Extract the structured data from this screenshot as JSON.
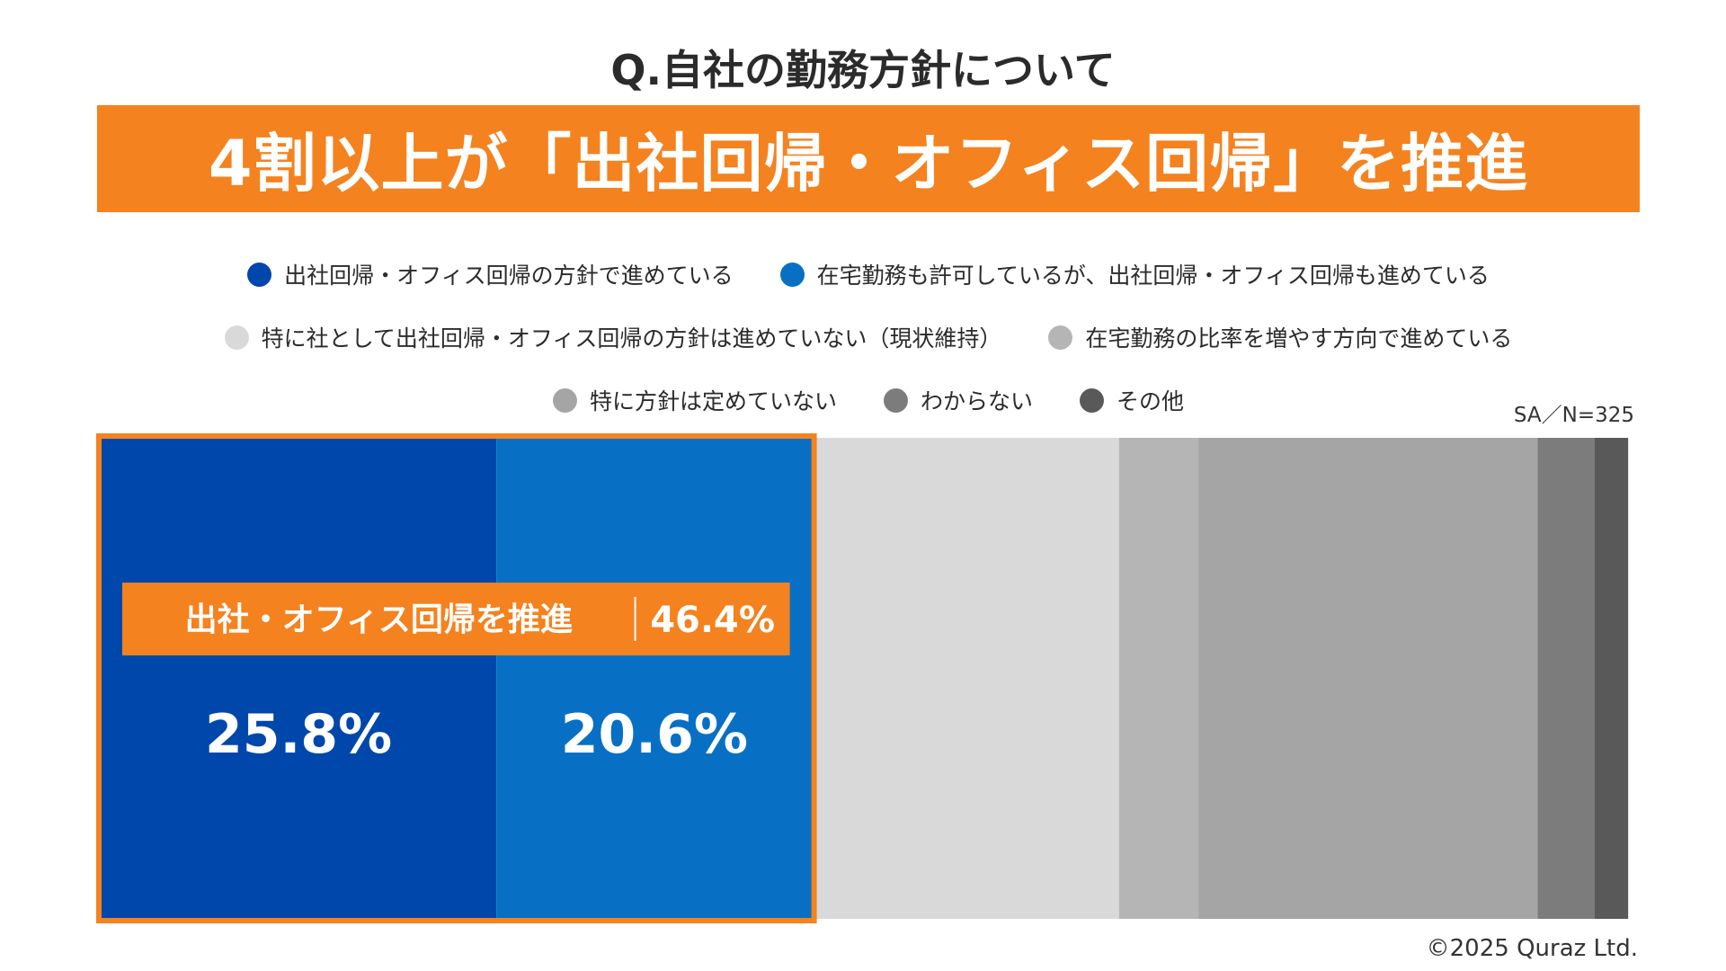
{
  "question": "Q.自社の勤務方針について",
  "headline": "4割以上が「出社回帰・オフィス回帰」を推進",
  "sample_size": "SA／N=325",
  "copyright": "©2025 Quraz Ltd.",
  "colors": {
    "accent": "#f4821f",
    "series": [
      "#0047ab",
      "#0870c4",
      "#d9d9d9",
      "#b5b5b5",
      "#a5a5a5",
      "#7c7c7c",
      "#595959"
    ]
  },
  "highlight": {
    "label": "出社・オフィス回帰を推進",
    "value_label": "46.4%"
  },
  "chart_data": {
    "type": "bar",
    "stacked": true,
    "orientation": "horizontal",
    "xlim": [
      0,
      100
    ],
    "grid": false,
    "legend_position": "top",
    "series": [
      {
        "name": "出社回帰・オフィス回帰の方針で進めている",
        "value": 25.8,
        "label": "25.8%"
      },
      {
        "name": "在宅勤務も許可しているが、出社回帰・オフィス回帰も進めている",
        "value": 20.6,
        "label": "20.6%"
      },
      {
        "name": "特に社として出社回帰・オフィス回帰の方針は進めていない（現状維持）",
        "value": 20.0
      },
      {
        "name": "在宅勤務の比率を増やす方向で進めている",
        "value": 5.2
      },
      {
        "name": "特に方針は定めていない",
        "value": 22.1
      },
      {
        "name": "わからない",
        "value": 3.7
      },
      {
        "name": "その他",
        "value": 2.2
      }
    ]
  }
}
